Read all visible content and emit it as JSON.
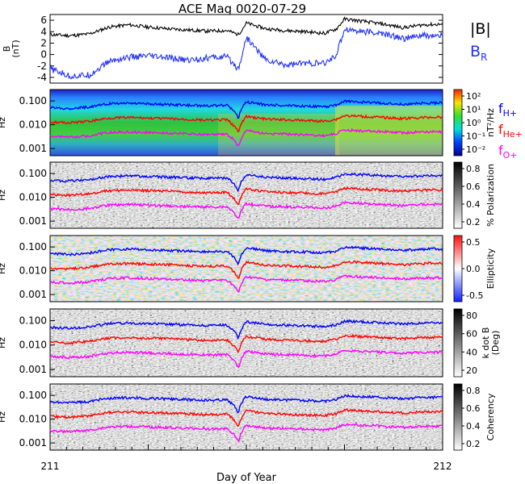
{
  "chart_data": {
    "type": "line",
    "title": "ACE Mag 0020-07-29",
    "xlabel": "Day of Year",
    "x_ticks": [
      "211",
      "212"
    ],
    "xlim": [
      211,
      212
    ],
    "panels": [
      {
        "id": "field",
        "ylabel": "B\n(nT)",
        "ylim": [
          -5,
          7
        ],
        "yticks": [
          "-4",
          "-2",
          "0",
          "2",
          "4",
          "6"
        ],
        "legend": [
          {
            "label": "|B|",
            "color": "#000000"
          },
          {
            "label": "B",
            "sub": "R",
            "color": "#2030ff"
          }
        ],
        "series": [
          {
            "name": "|B|",
            "color": "#000000",
            "x": [
              211.0,
              211.05,
              211.1,
              211.15,
              211.2,
              211.25,
              211.3,
              211.35,
              211.4,
              211.45,
              211.48,
              211.5,
              211.55,
              211.6,
              211.65,
              211.7,
              211.73,
              211.75,
              211.8,
              211.85,
              211.9,
              211.95,
              212.0
            ],
            "y": [
              3.5,
              3.3,
              3.6,
              4.8,
              5.2,
              4.8,
              4.5,
              4.3,
              4.1,
              4.2,
              3.5,
              5.5,
              4.5,
              4.2,
              4.0,
              3.7,
              4.5,
              6.2,
              5.8,
              5.3,
              4.7,
              5.2,
              5.3
            ]
          },
          {
            "name": "B",
            "color": "#2030ff",
            "x": [
              211.0,
              211.05,
              211.1,
              211.15,
              211.2,
              211.25,
              211.3,
              211.35,
              211.4,
              211.45,
              211.48,
              211.5,
              211.55,
              211.6,
              211.65,
              211.7,
              211.73,
              211.75,
              211.8,
              211.85,
              211.9,
              211.95,
              212.0
            ],
            "y": [
              -2.5,
              -3.8,
              -3.6,
              -1.2,
              -0.5,
              -0.3,
              -0.6,
              -1.0,
              -0.6,
              -0.4,
              -2.5,
              3.0,
              -1.0,
              -1.8,
              -1.5,
              -1.6,
              0.0,
              4.5,
              4.0,
              3.6,
              2.8,
              3.3,
              3.2
            ]
          }
        ]
      },
      {
        "id": "power",
        "ylabel": "Hz",
        "colorbar_label": "nT²/Hz",
        "colorbar_ticks": [
          "10⁻²",
          "10⁻¹",
          "10⁰",
          "10¹",
          "10²"
        ]
      },
      {
        "id": "polarization",
        "ylabel": "Hz",
        "colorbar_label": "% Polarization",
        "colorbar_ticks": [
          "0.2",
          "0.4",
          "0.6",
          "0.8"
        ]
      },
      {
        "id": "ellipticity",
        "ylabel": "Hz",
        "colorbar_label": "Ellipticity",
        "colorbar_ticks": [
          "-0.5",
          "0.0",
          "0.5"
        ]
      },
      {
        "id": "kdotb",
        "ylabel": "Hz",
        "colorbar_label": "k dot B\n(Deg)",
        "colorbar_ticks": [
          "20",
          "40",
          "60",
          "80"
        ]
      },
      {
        "id": "coherency",
        "ylabel": "Hz",
        "colorbar_label": "Coherency",
        "colorbar_ticks": [
          "0.2",
          "0.4",
          "0.6",
          "0.8"
        ]
      }
    ],
    "freq_yticks": [
      "0.001",
      "0.010",
      "0.100"
    ],
    "freq_ylim": [
      0.0005,
      0.3
    ],
    "gyro_lines": [
      {
        "name": "f",
        "sub": "H+",
        "color": "#0000ff",
        "x": [
          211.0,
          211.05,
          211.1,
          211.15,
          211.2,
          211.25,
          211.3,
          211.35,
          211.4,
          211.45,
          211.48,
          211.5,
          211.55,
          211.6,
          211.65,
          211.7,
          211.73,
          211.75,
          211.8,
          211.85,
          211.9,
          211.95,
          212.0
        ],
        "y": [
          0.052,
          0.048,
          0.055,
          0.075,
          0.08,
          0.075,
          0.07,
          0.066,
          0.062,
          0.065,
          0.018,
          0.09,
          0.068,
          0.064,
          0.061,
          0.056,
          0.068,
          0.095,
          0.088,
          0.081,
          0.072,
          0.08,
          0.082
        ]
      },
      {
        "name": "f",
        "sub": "He+",
        "color": "#ff0000",
        "x": [
          211.0,
          211.05,
          211.1,
          211.15,
          211.2,
          211.25,
          211.3,
          211.35,
          211.4,
          211.45,
          211.48,
          211.5,
          211.55,
          211.6,
          211.65,
          211.7,
          211.73,
          211.75,
          211.8,
          211.85,
          211.9,
          211.95,
          212.0
        ],
        "y": [
          0.013,
          0.012,
          0.014,
          0.019,
          0.02,
          0.019,
          0.018,
          0.0165,
          0.0155,
          0.016,
          0.0045,
          0.022,
          0.017,
          0.016,
          0.015,
          0.014,
          0.017,
          0.024,
          0.022,
          0.02,
          0.018,
          0.02,
          0.021
        ]
      },
      {
        "name": "f",
        "sub": "O+",
        "color": "#ff00ff",
        "x": [
          211.0,
          211.05,
          211.1,
          211.15,
          211.2,
          211.25,
          211.3,
          211.35,
          211.4,
          211.45,
          211.48,
          211.5,
          211.55,
          211.6,
          211.65,
          211.7,
          211.73,
          211.75,
          211.8,
          211.85,
          211.9,
          211.95,
          212.0
        ],
        "y": [
          0.0033,
          0.003,
          0.0034,
          0.0047,
          0.005,
          0.0047,
          0.0044,
          0.0041,
          0.0039,
          0.004,
          0.0011,
          0.0055,
          0.0042,
          0.004,
          0.0038,
          0.0035,
          0.0043,
          0.006,
          0.0055,
          0.005,
          0.0045,
          0.005,
          0.0051
        ]
      }
    ]
  }
}
